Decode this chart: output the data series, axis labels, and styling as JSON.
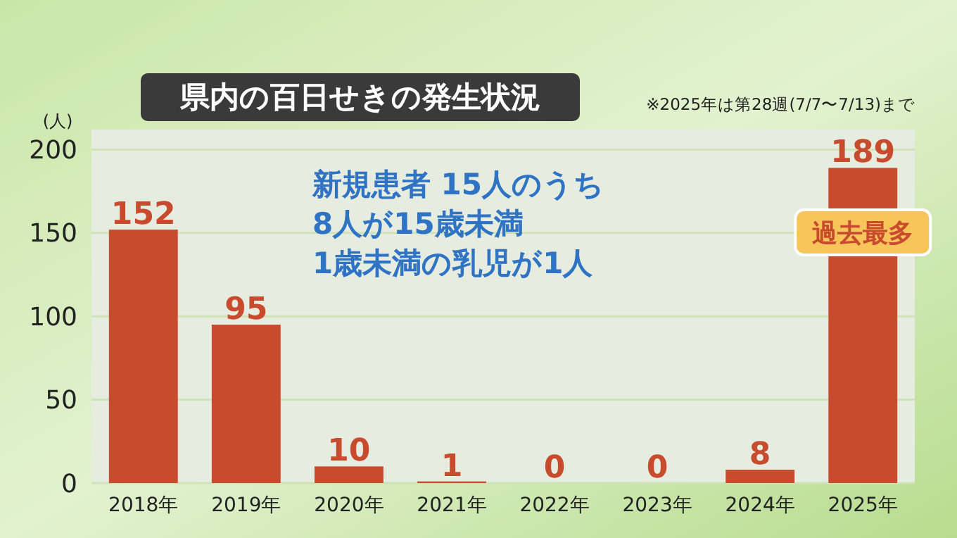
{
  "chart_data": {
    "type": "bar",
    "title": "県内の百日せきの発生状況",
    "ylabel": "(人)",
    "categories": [
      "2018年",
      "2019年",
      "2020年",
      "2021年",
      "2022年",
      "2023年",
      "2024年",
      "2025年"
    ],
    "values": [
      152,
      95,
      10,
      1,
      0,
      0,
      8,
      189
    ],
    "color": "#c84b2e",
    "ylim": [
      0,
      212
    ],
    "yticks": [
      0,
      50,
      100,
      150,
      200
    ],
    "grid": "y",
    "data_labels": true,
    "annotations": [
      "※2025年は第28週(7/7〜7/13)まで",
      "新規患者 15人のうち\n8人が15歳未満\n1歳未満の乳児が1人",
      "過去最多"
    ]
  }
}
